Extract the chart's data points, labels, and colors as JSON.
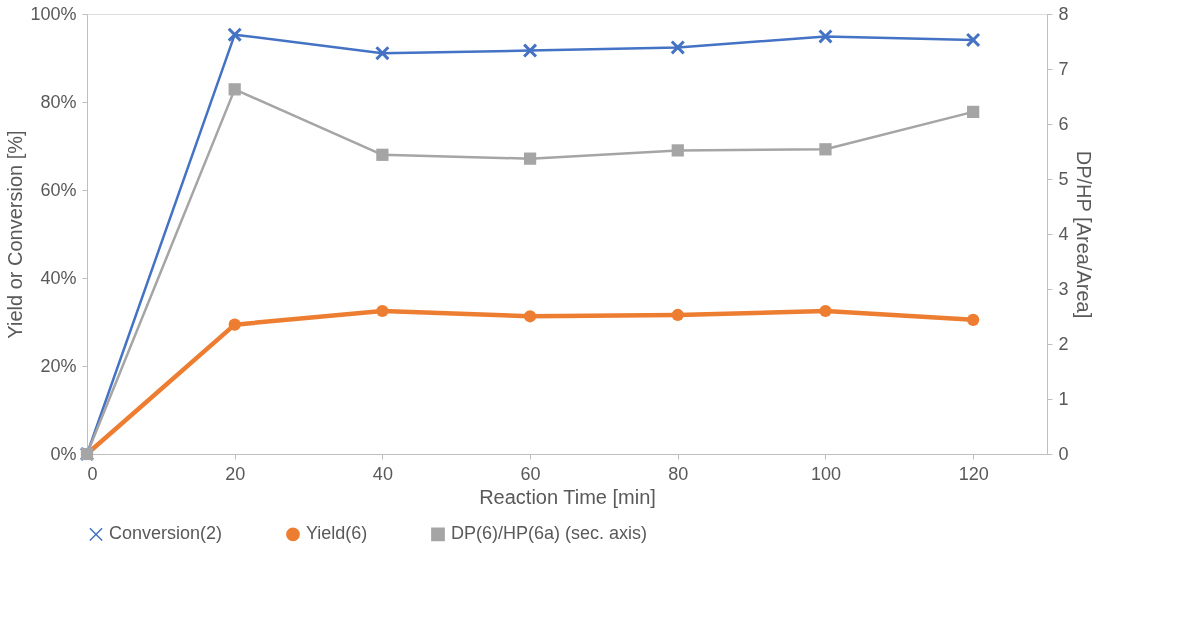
{
  "chart_data": {
    "type": "line",
    "x": [
      0,
      20,
      40,
      60,
      80,
      100,
      120
    ],
    "xlabel": "Reaction Time [min]",
    "ylabel": "Yield or Conversion [%]",
    "y2label": "DP/HP [Area/Area]",
    "xlim": [
      0,
      130
    ],
    "xticks": [
      0,
      20,
      40,
      60,
      80,
      100,
      120
    ],
    "ylim": [
      0,
      100
    ],
    "yticks": [
      {
        "value": 0,
        "label": "0%"
      },
      {
        "value": 20,
        "label": "20%"
      },
      {
        "value": 40,
        "label": "40%"
      },
      {
        "value": 60,
        "label": "60%"
      },
      {
        "value": 80,
        "label": "80%"
      },
      {
        "value": 100,
        "label": "100%"
      }
    ],
    "y2lim": [
      0,
      8
    ],
    "y2ticks": [
      0,
      1,
      2,
      3,
      4,
      5,
      6,
      7,
      8
    ],
    "grid": false,
    "legend": "bottom",
    "line_style": "solid",
    "series": [
      {
        "name": "Conversion(2)",
        "color": "#4472c4",
        "marker": "cross",
        "values": [
          0,
          95.3,
          91.1,
          91.7,
          92.4,
          94.9,
          94.1
        ]
      },
      {
        "name": "Yield(6)",
        "color": "#ed7d31",
        "marker": "circle",
        "values": [
          0,
          29.4,
          32.5,
          31.3,
          31.6,
          32.5,
          30.5
        ]
      },
      {
        "name": "DP(6)/HP(6a) (sec. axis)",
        "color": "#a5a5a5",
        "marker": "square",
        "axis": "y2",
        "values": [
          0,
          6.63,
          5.44,
          5.37,
          5.52,
          5.54,
          6.22
        ]
      }
    ]
  }
}
